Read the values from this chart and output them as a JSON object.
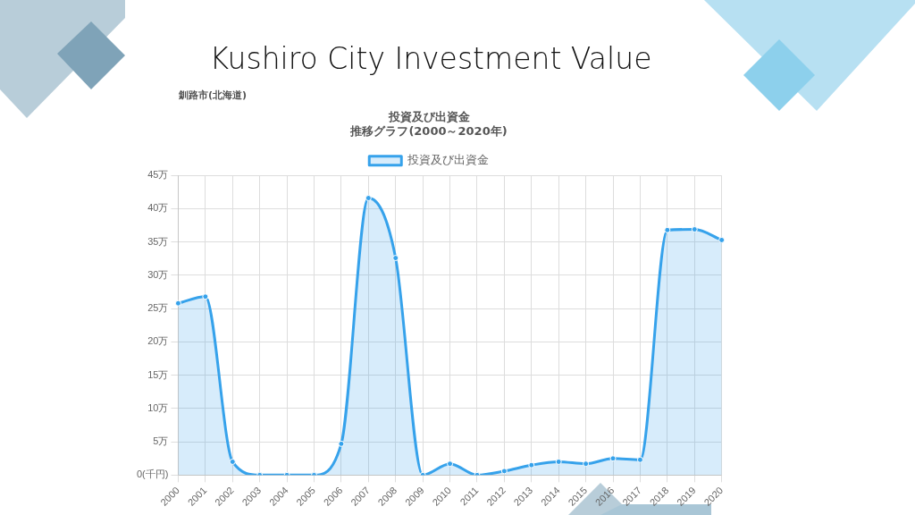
{
  "chart_data": {
    "type": "area",
    "title": "Kushiro City Investment Value",
    "subtitle": "釧路市(北海道)",
    "annotations": [
      "投資及び出資金",
      "推移グラフ(2000～2020年)"
    ],
    "categories": [
      "2000",
      "2001",
      "2002",
      "2003",
      "2004",
      "2005",
      "2006",
      "2007",
      "2008",
      "2009",
      "2010",
      "2011",
      "2012",
      "2013",
      "2014",
      "2015",
      "2016",
      "2017",
      "2018",
      "2019",
      "2020"
    ],
    "series": [
      {
        "name": "投資及び出資金",
        "color": "#36a2eb",
        "values": [
          25.8,
          26.8,
          2.0,
          0,
          0,
          0,
          4.7,
          41.6,
          32.6,
          0,
          1.7,
          0,
          0.6,
          1.5,
          2.0,
          1.7,
          2.5,
          2.3,
          36.8,
          36.9,
          35.3
        ]
      }
    ],
    "ylim": [
      0,
      45
    ],
    "yticks": [
      {
        "value": 0,
        "label": "0(千円)"
      },
      {
        "value": 5,
        "label": "5万"
      },
      {
        "value": 10,
        "label": "10万"
      },
      {
        "value": 15,
        "label": "15万"
      },
      {
        "value": 20,
        "label": "20万"
      },
      {
        "value": 25,
        "label": "25万"
      },
      {
        "value": 30,
        "label": "30万"
      },
      {
        "value": 35,
        "label": "35万"
      },
      {
        "value": 40,
        "label": "40万"
      },
      {
        "value": 45,
        "label": "45万"
      }
    ],
    "grid": true,
    "legend": "top",
    "marker": "circle",
    "line_style": "solid"
  }
}
